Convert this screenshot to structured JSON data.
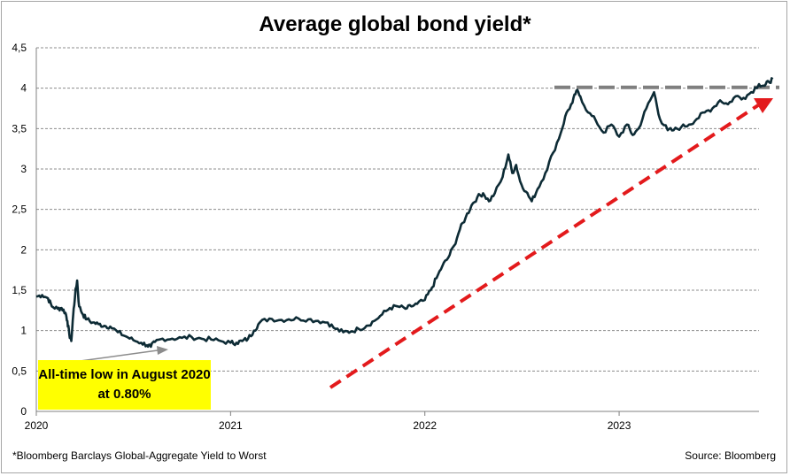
{
  "chart_data": {
    "type": "line",
    "title": "Average global bond yield*",
    "footnote": "*Bloomberg Barclays Global-Aggregate Yield to Worst",
    "source": "Source: Bloomberg",
    "ylim": [
      0,
      4.5
    ],
    "y_ticks": [
      "0",
      "0,5",
      "1",
      "1,5",
      "2",
      "2,5",
      "3",
      "3,5",
      "4",
      "4,5"
    ],
    "x_ticks": [
      "2020",
      "2021",
      "2022",
      "2023"
    ],
    "grid": true,
    "annotation": "All-time low in August 2020 at 0.80%",
    "reference_level": 4.01,
    "series": [
      {
        "color": "#0d2b35",
        "points": [
          [
            2020.0,
            1.42
          ],
          [
            2020.03,
            1.44
          ],
          [
            2020.06,
            1.4
          ],
          [
            2020.08,
            1.3
          ],
          [
            2020.11,
            1.27
          ],
          [
            2020.13,
            1.28
          ],
          [
            2020.15,
            1.22
          ],
          [
            2020.16,
            1.12
          ],
          [
            2020.17,
            0.95
          ],
          [
            2020.18,
            0.87
          ],
          [
            2020.19,
            1.2
          ],
          [
            2020.2,
            1.45
          ],
          [
            2020.21,
            1.62
          ],
          [
            2020.22,
            1.3
          ],
          [
            2020.24,
            1.2
          ],
          [
            2020.26,
            1.14
          ],
          [
            2020.29,
            1.1
          ],
          [
            2020.32,
            1.08
          ],
          [
            2020.35,
            1.06
          ],
          [
            2020.38,
            1.05
          ],
          [
            2020.42,
            0.98
          ],
          [
            2020.46,
            0.93
          ],
          [
            2020.5,
            0.88
          ],
          [
            2020.54,
            0.85
          ],
          [
            2020.57,
            0.82
          ],
          [
            2020.59,
            0.8
          ],
          [
            2020.61,
            0.86
          ],
          [
            2020.65,
            0.9
          ],
          [
            2020.7,
            0.9
          ],
          [
            2020.75,
            0.91
          ],
          [
            2020.8,
            0.92
          ],
          [
            2020.85,
            0.9
          ],
          [
            2020.9,
            0.89
          ],
          [
            2020.95,
            0.87
          ],
          [
            2021.0,
            0.85
          ],
          [
            2021.03,
            0.85
          ],
          [
            2021.06,
            0.87
          ],
          [
            2021.09,
            0.9
          ],
          [
            2021.12,
            1.0
          ],
          [
            2021.15,
            1.1
          ],
          [
            2021.2,
            1.15
          ],
          [
            2021.25,
            1.13
          ],
          [
            2021.3,
            1.14
          ],
          [
            2021.35,
            1.15
          ],
          [
            2021.4,
            1.14
          ],
          [
            2021.45,
            1.12
          ],
          [
            2021.5,
            1.1
          ],
          [
            2021.54,
            1.02
          ],
          [
            2021.58,
            0.98
          ],
          [
            2021.62,
            0.99
          ],
          [
            2021.66,
            1.02
          ],
          [
            2021.7,
            1.06
          ],
          [
            2021.74,
            1.12
          ],
          [
            2021.78,
            1.2
          ],
          [
            2021.82,
            1.28
          ],
          [
            2021.86,
            1.3
          ],
          [
            2021.9,
            1.27
          ],
          [
            2021.93,
            1.3
          ],
          [
            2021.96,
            1.33
          ],
          [
            2022.0,
            1.38
          ],
          [
            2022.03,
            1.5
          ],
          [
            2022.06,
            1.65
          ],
          [
            2022.09,
            1.8
          ],
          [
            2022.12,
            1.9
          ],
          [
            2022.15,
            2.05
          ],
          [
            2022.18,
            2.25
          ],
          [
            2022.21,
            2.4
          ],
          [
            2022.24,
            2.55
          ],
          [
            2022.27,
            2.65
          ],
          [
            2022.3,
            2.7
          ],
          [
            2022.33,
            2.6
          ],
          [
            2022.36,
            2.7
          ],
          [
            2022.4,
            2.9
          ],
          [
            2022.43,
            3.18
          ],
          [
            2022.45,
            2.95
          ],
          [
            2022.47,
            3.05
          ],
          [
            2022.49,
            2.85
          ],
          [
            2022.52,
            2.72
          ],
          [
            2022.55,
            2.6
          ],
          [
            2022.58,
            2.75
          ],
          [
            2022.62,
            2.95
          ],
          [
            2022.66,
            3.2
          ],
          [
            2022.7,
            3.45
          ],
          [
            2022.73,
            3.7
          ],
          [
            2022.76,
            3.82
          ],
          [
            2022.78,
            3.97
          ],
          [
            2022.8,
            3.9
          ],
          [
            2022.84,
            3.7
          ],
          [
            2022.88,
            3.6
          ],
          [
            2022.92,
            3.45
          ],
          [
            2022.96,
            3.55
          ],
          [
            2023.0,
            3.4
          ],
          [
            2023.04,
            3.55
          ],
          [
            2023.07,
            3.42
          ],
          [
            2023.1,
            3.5
          ],
          [
            2023.14,
            3.75
          ],
          [
            2023.18,
            3.95
          ],
          [
            2023.21,
            3.62
          ],
          [
            2023.25,
            3.48
          ],
          [
            2023.28,
            3.48
          ],
          [
            2023.32,
            3.52
          ],
          [
            2023.36,
            3.55
          ],
          [
            2023.4,
            3.62
          ],
          [
            2023.44,
            3.7
          ],
          [
            2023.48,
            3.75
          ],
          [
            2023.52,
            3.85
          ],
          [
            2023.56,
            3.8
          ],
          [
            2023.6,
            3.9
          ],
          [
            2023.64,
            3.88
          ],
          [
            2023.68,
            3.95
          ],
          [
            2023.72,
            4.05
          ],
          [
            2023.75,
            4.03
          ],
          [
            2023.77,
            4.08
          ],
          [
            2023.79,
            4.11
          ]
        ]
      }
    ]
  }
}
